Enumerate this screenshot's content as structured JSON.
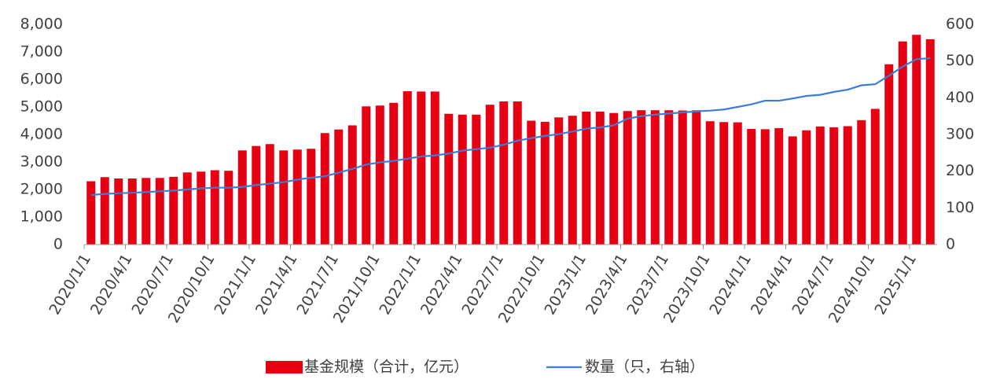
{
  "chart_data": {
    "type": "bar_line",
    "categories": [
      "2020/1/1",
      null,
      null,
      "2020/4/1",
      null,
      null,
      "2020/7/1",
      null,
      null,
      "2020/10/1",
      null,
      null,
      "2021/1/1",
      null,
      null,
      "2021/4/1",
      null,
      null,
      "2021/7/1",
      null,
      null,
      "2021/10/1",
      null,
      null,
      "2022/1/1",
      null,
      null,
      "2022/4/1",
      null,
      null,
      "2022/7/1",
      null,
      null,
      "2022/10/1",
      null,
      null,
      "2023/1/1",
      null,
      null,
      "2023/4/1",
      null,
      null,
      "2023/7/1",
      null,
      null,
      "2023/10/1",
      null,
      null,
      "2024/1/1",
      null,
      null,
      "2024/4/1",
      null,
      null,
      "2024/7/1",
      null,
      null,
      "2024/10/1",
      null,
      null,
      "2025/1/1",
      null
    ],
    "series": [
      {
        "name": "基金规模（合计，亿元）",
        "color": "#e60012",
        "kind": "bar",
        "values": [
          2300,
          2450,
          2400,
          2400,
          2420,
          2420,
          2460,
          2620,
          2650,
          2700,
          2680,
          3420,
          3580,
          3650,
          3420,
          3450,
          3480,
          4050,
          4180,
          4330,
          5020,
          5050,
          5150,
          5570,
          5560,
          5560,
          4750,
          4720,
          4720,
          5080,
          5200,
          5200,
          4500,
          4460,
          4620,
          4680,
          4830,
          4830,
          4780,
          4850,
          4880,
          4880,
          4880,
          4870,
          4880,
          4480,
          4450,
          4440,
          4200,
          4190,
          4230,
          3930,
          4150,
          4290,
          4260,
          4300,
          4520,
          4930,
          6550,
          7380,
          7620,
          7460
        ]
      },
      {
        "name": "数量（只，右轴）",
        "color": "#3b7dd8",
        "kind": "line",
        "axis": "y2",
        "values": [
          135,
          138,
          140,
          141,
          143,
          145,
          147,
          150,
          153,
          155,
          155,
          157,
          162,
          166,
          170,
          177,
          182,
          186,
          196,
          206,
          218,
          224,
          228,
          234,
          240,
          243,
          248,
          256,
          260,
          264,
          272,
          283,
          290,
          296,
          301,
          308,
          316,
          319,
          325,
          343,
          350,
          354,
          357,
          360,
          363,
          365,
          368,
          375,
          382,
          392,
          392,
          398,
          405,
          408,
          416,
          422,
          434,
          437,
          460,
          485,
          505,
          508
        ]
      }
    ],
    "ylim": [
      0,
      8000
    ],
    "yticks": [
      0,
      {
        "value": 1000,
        "label": "1,000"
      },
      {
        "value": 2000,
        "label": "2,000"
      },
      {
        "value": 3000,
        "label": "3,000"
      },
      {
        "value": 4000,
        "label": "4,000"
      },
      {
        "value": 5000,
        "label": "5,000"
      },
      {
        "value": 6000,
        "label": "6,000"
      },
      {
        "value": 7000,
        "label": "7,000"
      },
      {
        "value": 8000,
        "label": "8,000"
      }
    ],
    "y2lim": [
      0,
      600
    ],
    "y2ticks": [
      0,
      100,
      200,
      300,
      400,
      500,
      600
    ]
  }
}
